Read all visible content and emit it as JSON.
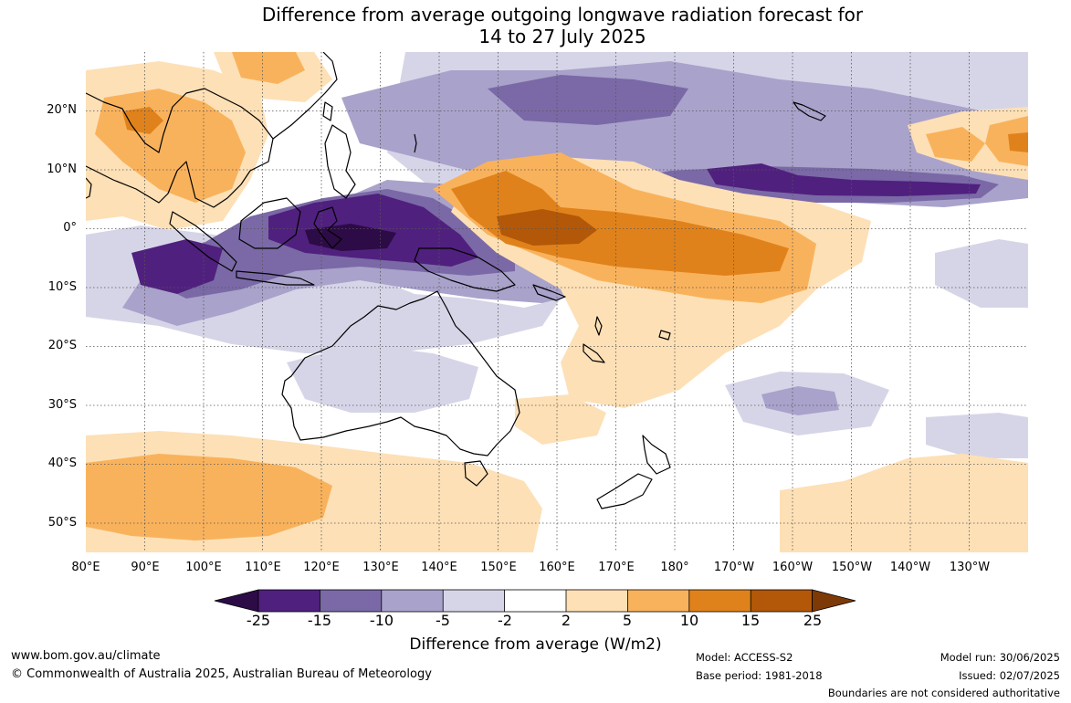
{
  "title": {
    "line1": "Difference from average outgoing longwave radiation forecast for",
    "line2": "14 to 27 July 2025"
  },
  "map": {
    "lat_labels": [
      "20°N",
      "10°N",
      "0°",
      "10°S",
      "20°S",
      "30°S",
      "40°S",
      "50°S"
    ],
    "lon_labels": [
      "80°E",
      "90°E",
      "100°E",
      "110°E",
      "120°E",
      "130°E",
      "140°E",
      "150°E",
      "160°E",
      "170°E",
      "180°",
      "170°W",
      "160°W",
      "150°W",
      "140°W",
      "130°W"
    ]
  },
  "colorbar": {
    "title": "Difference from average (W/m2)",
    "tick_labels": [
      "-25",
      "-15",
      "-10",
      "-5",
      "-2",
      "2",
      "5",
      "10",
      "15",
      "25"
    ],
    "colors": {
      "below_-25": "#2d0b46",
      "-25_-15": "#50207e",
      "-15_-10": "#7a69a6",
      "-10_-5": "#a9a2cb",
      "-5_-2": "#d6d5e8",
      "-2_2": "#ffffff",
      "2_5": "#fde0b6",
      "5_10": "#f9b25c",
      "10_15": "#e0821b",
      "15_25": "#b25808",
      "above_25": "#7e3a06"
    }
  },
  "footer": {
    "website": "www.bom.gov.au/climate",
    "copyright": "© Commonwealth of Australia 2025, Australian Bureau of Meteorology",
    "model": "Model: ACCESS-S2",
    "base_period": "Base period: 1981-2018",
    "model_run": "Model run: 30/06/2025",
    "issued": "Issued: 02/07/2025",
    "disclaimer": "Boundaries are not considered authoritative"
  }
}
